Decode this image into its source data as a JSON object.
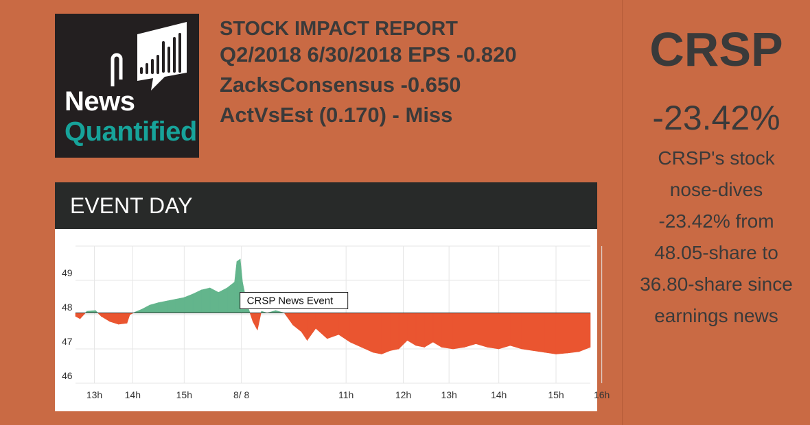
{
  "logo": {
    "line1": "News",
    "line2": "Quantified",
    "icon": "bar-chart-speech-bubble-icon"
  },
  "report": {
    "heading": "STOCK IMPACT REPORT",
    "line1": "Q2/2018 6/30/2018 EPS -0.820",
    "line2": "ZacksConsensus -0.650",
    "line3": "ActVsEst (0.170) - Miss"
  },
  "chart_panel": {
    "title": "EVENT DAY"
  },
  "chart_data": {
    "type": "area",
    "title": "EVENT DAY",
    "baseline": 48.05,
    "ylim": [
      46,
      50
    ],
    "yticks": [
      {
        "v": 49,
        "label": "49"
      },
      {
        "v": 48,
        "label": "48"
      },
      {
        "v": 47,
        "label": "47"
      },
      {
        "v": 46,
        "label": "46"
      }
    ],
    "xlim": [
      0,
      9
    ],
    "xticks": [
      {
        "t": 0.33,
        "label": "13h"
      },
      {
        "t": 1.0,
        "label": "14h"
      },
      {
        "t": 1.9,
        "label": "15h"
      },
      {
        "t": 2.9,
        "label": "8/ 8"
      },
      {
        "t": 4.73,
        "label": "11h"
      },
      {
        "t": 5.73,
        "label": "12h"
      },
      {
        "t": 6.53,
        "label": "13h"
      },
      {
        "t": 7.4,
        "label": "14h"
      },
      {
        "t": 8.4,
        "label": "15h"
      },
      {
        "t": 9.2,
        "label": "16h"
      }
    ],
    "annotation": "CRSP News Event",
    "series": [
      {
        "name": "CRSP",
        "up_color": "#63b58c",
        "down_color": "#ea5530",
        "points": [
          [
            0.0,
            47.95
          ],
          [
            0.08,
            47.88
          ],
          [
            0.2,
            48.1
          ],
          [
            0.35,
            48.12
          ],
          [
            0.45,
            47.95
          ],
          [
            0.6,
            47.8
          ],
          [
            0.75,
            47.72
          ],
          [
            0.9,
            47.75
          ],
          [
            0.95,
            48.0
          ],
          [
            1.05,
            48.08
          ],
          [
            1.15,
            48.15
          ],
          [
            1.3,
            48.28
          ],
          [
            1.45,
            48.35
          ],
          [
            1.6,
            48.4
          ],
          [
            1.75,
            48.45
          ],
          [
            1.9,
            48.5
          ],
          [
            2.05,
            48.6
          ],
          [
            2.2,
            48.72
          ],
          [
            2.35,
            48.78
          ],
          [
            2.5,
            48.65
          ],
          [
            2.65,
            48.78
          ],
          [
            2.78,
            48.95
          ],
          [
            2.82,
            49.55
          ],
          [
            2.88,
            49.62
          ],
          [
            2.92,
            48.95
          ],
          [
            3.0,
            48.3
          ],
          [
            3.1,
            47.8
          ],
          [
            3.18,
            47.55
          ],
          [
            3.25,
            48.1
          ],
          [
            3.35,
            48.05
          ],
          [
            3.5,
            48.12
          ],
          [
            3.65,
            48.05
          ],
          [
            3.8,
            47.7
          ],
          [
            3.95,
            47.5
          ],
          [
            4.05,
            47.25
          ],
          [
            4.2,
            47.6
          ],
          [
            4.4,
            47.3
          ],
          [
            4.6,
            47.42
          ],
          [
            4.8,
            47.2
          ],
          [
            5.0,
            47.05
          ],
          [
            5.2,
            46.9
          ],
          [
            5.35,
            46.85
          ],
          [
            5.5,
            46.95
          ],
          [
            5.65,
            47.0
          ],
          [
            5.8,
            47.25
          ],
          [
            5.95,
            47.1
          ],
          [
            6.1,
            47.05
          ],
          [
            6.25,
            47.2
          ],
          [
            6.4,
            47.05
          ],
          [
            6.6,
            47.0
          ],
          [
            6.8,
            47.05
          ],
          [
            7.0,
            47.15
          ],
          [
            7.2,
            47.05
          ],
          [
            7.4,
            47.0
          ],
          [
            7.6,
            47.1
          ],
          [
            7.8,
            47.0
          ],
          [
            8.0,
            46.95
          ],
          [
            8.2,
            46.9
          ],
          [
            8.4,
            46.85
          ],
          [
            8.6,
            46.88
          ],
          [
            8.8,
            46.92
          ],
          [
            9.0,
            47.05
          ]
        ]
      }
    ]
  },
  "sidebar": {
    "ticker": "CRSP",
    "change": "-23.42%",
    "description": "CRSP's stock nose-dives -23.42% from 48.05-share to 36.80-share since earnings news"
  }
}
